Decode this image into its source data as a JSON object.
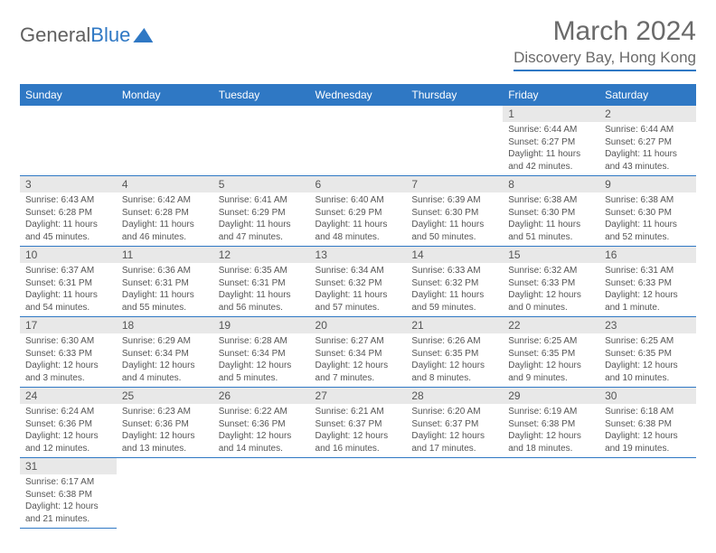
{
  "logo": {
    "part1": "General",
    "part2": "Blue"
  },
  "title": "March 2024",
  "location": "Discovery Bay, Hong Kong",
  "colors": {
    "accent": "#2f78c4",
    "header_text": "#ffffff",
    "daynum_bg": "#e8e8e8",
    "text": "#555555",
    "title_color": "#6a6a6a"
  },
  "calendar": {
    "type": "table",
    "day_headers": [
      "Sunday",
      "Monday",
      "Tuesday",
      "Wednesday",
      "Thursday",
      "Friday",
      "Saturday"
    ],
    "weeks": [
      [
        null,
        null,
        null,
        null,
        null,
        {
          "d": "1",
          "sr": "6:44 AM",
          "ss": "6:27 PM",
          "dl": "11 hours and 42 minutes."
        },
        {
          "d": "2",
          "sr": "6:44 AM",
          "ss": "6:27 PM",
          "dl": "11 hours and 43 minutes."
        }
      ],
      [
        {
          "d": "3",
          "sr": "6:43 AM",
          "ss": "6:28 PM",
          "dl": "11 hours and 45 minutes."
        },
        {
          "d": "4",
          "sr": "6:42 AM",
          "ss": "6:28 PM",
          "dl": "11 hours and 46 minutes."
        },
        {
          "d": "5",
          "sr": "6:41 AM",
          "ss": "6:29 PM",
          "dl": "11 hours and 47 minutes."
        },
        {
          "d": "6",
          "sr": "6:40 AM",
          "ss": "6:29 PM",
          "dl": "11 hours and 48 minutes."
        },
        {
          "d": "7",
          "sr": "6:39 AM",
          "ss": "6:30 PM",
          "dl": "11 hours and 50 minutes."
        },
        {
          "d": "8",
          "sr": "6:38 AM",
          "ss": "6:30 PM",
          "dl": "11 hours and 51 minutes."
        },
        {
          "d": "9",
          "sr": "6:38 AM",
          "ss": "6:30 PM",
          "dl": "11 hours and 52 minutes."
        }
      ],
      [
        {
          "d": "10",
          "sr": "6:37 AM",
          "ss": "6:31 PM",
          "dl": "11 hours and 54 minutes."
        },
        {
          "d": "11",
          "sr": "6:36 AM",
          "ss": "6:31 PM",
          "dl": "11 hours and 55 minutes."
        },
        {
          "d": "12",
          "sr": "6:35 AM",
          "ss": "6:31 PM",
          "dl": "11 hours and 56 minutes."
        },
        {
          "d": "13",
          "sr": "6:34 AM",
          "ss": "6:32 PM",
          "dl": "11 hours and 57 minutes."
        },
        {
          "d": "14",
          "sr": "6:33 AM",
          "ss": "6:32 PM",
          "dl": "11 hours and 59 minutes."
        },
        {
          "d": "15",
          "sr": "6:32 AM",
          "ss": "6:33 PM",
          "dl": "12 hours and 0 minutes."
        },
        {
          "d": "16",
          "sr": "6:31 AM",
          "ss": "6:33 PM",
          "dl": "12 hours and 1 minute."
        }
      ],
      [
        {
          "d": "17",
          "sr": "6:30 AM",
          "ss": "6:33 PM",
          "dl": "12 hours and 3 minutes."
        },
        {
          "d": "18",
          "sr": "6:29 AM",
          "ss": "6:34 PM",
          "dl": "12 hours and 4 minutes."
        },
        {
          "d": "19",
          "sr": "6:28 AM",
          "ss": "6:34 PM",
          "dl": "12 hours and 5 minutes."
        },
        {
          "d": "20",
          "sr": "6:27 AM",
          "ss": "6:34 PM",
          "dl": "12 hours and 7 minutes."
        },
        {
          "d": "21",
          "sr": "6:26 AM",
          "ss": "6:35 PM",
          "dl": "12 hours and 8 minutes."
        },
        {
          "d": "22",
          "sr": "6:25 AM",
          "ss": "6:35 PM",
          "dl": "12 hours and 9 minutes."
        },
        {
          "d": "23",
          "sr": "6:25 AM",
          "ss": "6:35 PM",
          "dl": "12 hours and 10 minutes."
        }
      ],
      [
        {
          "d": "24",
          "sr": "6:24 AM",
          "ss": "6:36 PM",
          "dl": "12 hours and 12 minutes."
        },
        {
          "d": "25",
          "sr": "6:23 AM",
          "ss": "6:36 PM",
          "dl": "12 hours and 13 minutes."
        },
        {
          "d": "26",
          "sr": "6:22 AM",
          "ss": "6:36 PM",
          "dl": "12 hours and 14 minutes."
        },
        {
          "d": "27",
          "sr": "6:21 AM",
          "ss": "6:37 PM",
          "dl": "12 hours and 16 minutes."
        },
        {
          "d": "28",
          "sr": "6:20 AM",
          "ss": "6:37 PM",
          "dl": "12 hours and 17 minutes."
        },
        {
          "d": "29",
          "sr": "6:19 AM",
          "ss": "6:38 PM",
          "dl": "12 hours and 18 minutes."
        },
        {
          "d": "30",
          "sr": "6:18 AM",
          "ss": "6:38 PM",
          "dl": "12 hours and 19 minutes."
        }
      ],
      [
        {
          "d": "31",
          "sr": "6:17 AM",
          "ss": "6:38 PM",
          "dl": "12 hours and 21 minutes."
        },
        null,
        null,
        null,
        null,
        null,
        null
      ]
    ],
    "labels": {
      "sunrise": "Sunrise:",
      "sunset": "Sunset:",
      "daylight": "Daylight:"
    }
  }
}
